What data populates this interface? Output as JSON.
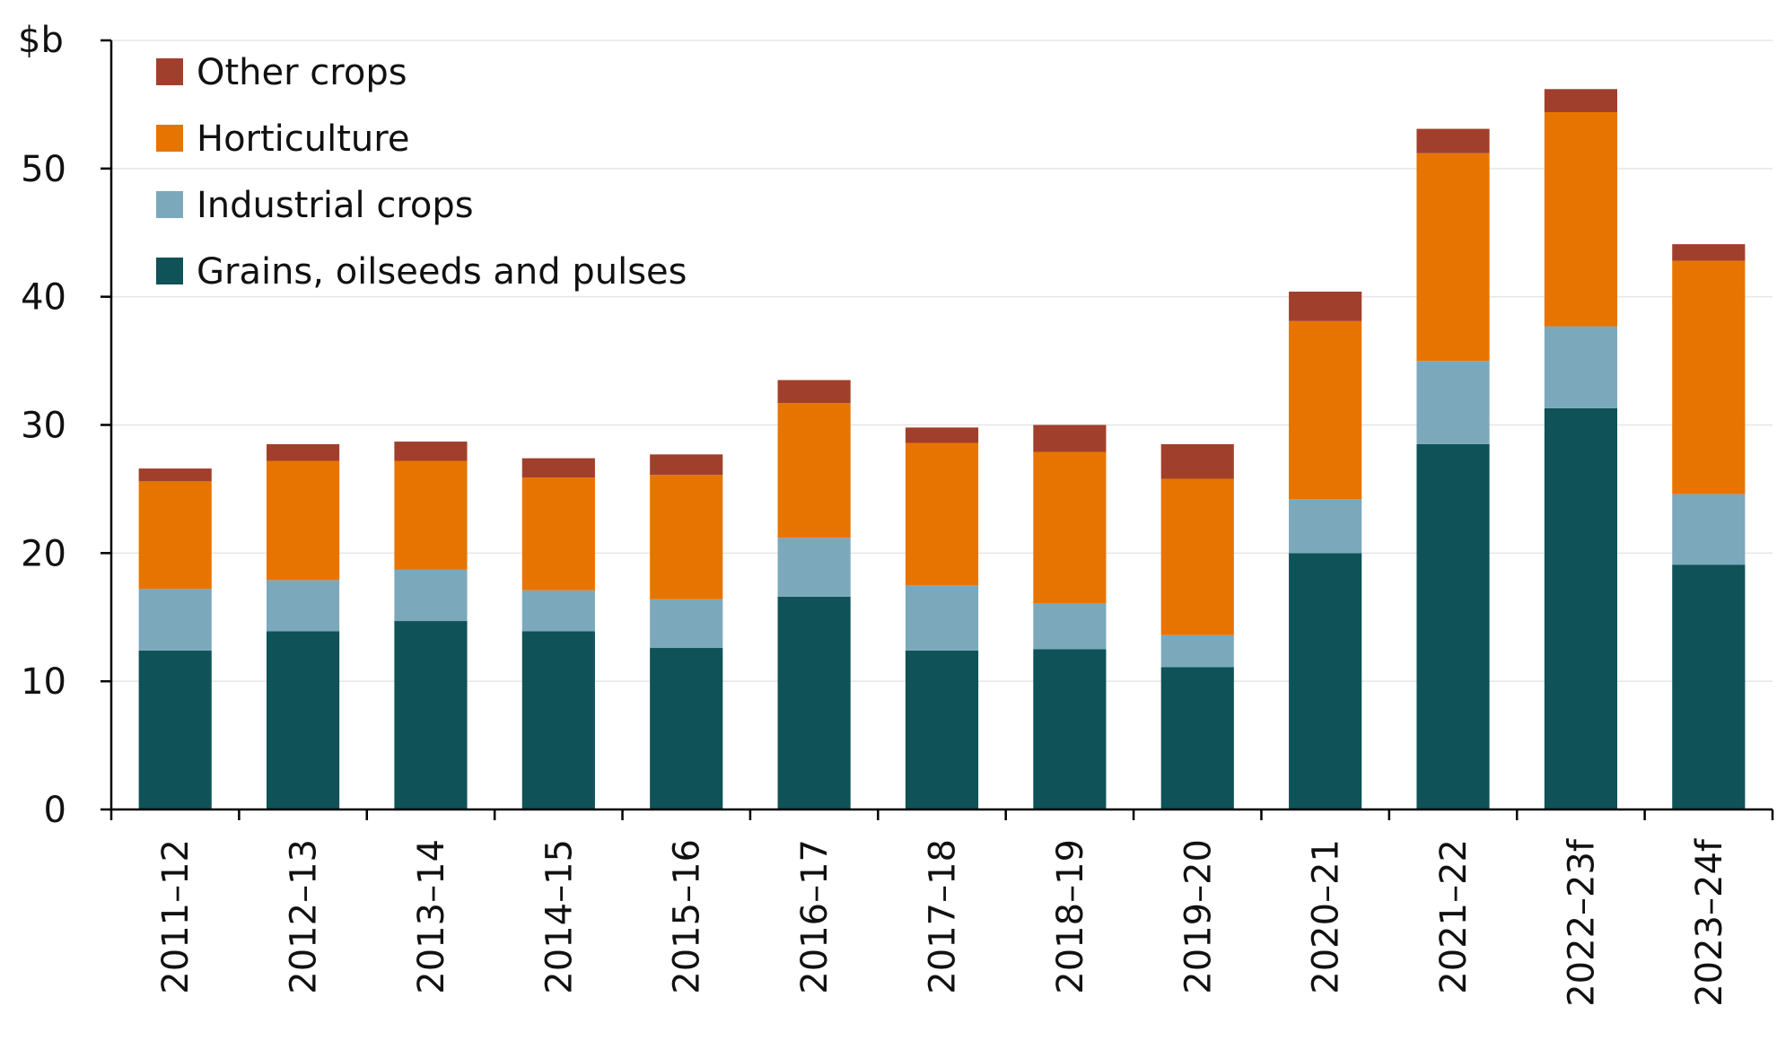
{
  "chart_data": {
    "type": "bar",
    "stacked": true,
    "title": "",
    "xlabel": "",
    "ylabel": "$b",
    "ylim": [
      0,
      60
    ],
    "yticks": [
      0,
      10,
      20,
      30,
      40,
      50
    ],
    "grid": true,
    "legend_position": "top-left",
    "categories": [
      "2011–12",
      "2012–13",
      "2013–14",
      "2014–15",
      "2015–16",
      "2016–17",
      "2017–18",
      "2018–19",
      "2019–20",
      "2020–21",
      "2021–22",
      "2022–23f",
      "2023–24f"
    ],
    "series": [
      {
        "name": "Grains, oilseeds and pulses",
        "color": "#0f5257",
        "values": [
          12.4,
          13.9,
          14.7,
          13.9,
          12.6,
          16.6,
          12.4,
          12.5,
          11.1,
          20.0,
          28.5,
          31.3,
          19.1
        ]
      },
      {
        "name": "Industrial crops",
        "color": "#7ca8bc",
        "values": [
          4.8,
          4.0,
          4.0,
          3.2,
          3.8,
          4.6,
          5.1,
          3.6,
          2.5,
          4.2,
          6.5,
          6.4,
          5.5
        ]
      },
      {
        "name": "Horticulture",
        "color": "#e87400",
        "values": [
          8.4,
          9.3,
          8.5,
          8.8,
          9.7,
          10.5,
          11.1,
          11.8,
          12.2,
          13.9,
          16.2,
          16.7,
          18.2
        ]
      },
      {
        "name": "Other crops",
        "color": "#a0402c",
        "values": [
          1.0,
          1.3,
          1.5,
          1.5,
          1.6,
          1.8,
          1.2,
          2.1,
          2.7,
          2.3,
          1.9,
          1.8,
          1.3
        ]
      }
    ]
  }
}
